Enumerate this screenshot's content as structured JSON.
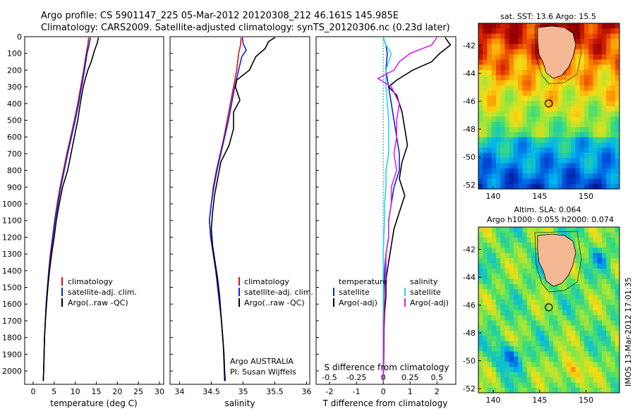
{
  "header": {
    "line1": "Argo profile: CS 5901147_225 05-Mar-2012 20120308_212 46.161S 145.985E",
    "line2": "Climatology: CARS2009. Satellite-adjusted climatology: synTS_20120306.nc (0.23d later)"
  },
  "side_stamp": "IMOS 13-Mar-2012 17:01:35",
  "colors": {
    "climatology": "#e01010",
    "satellite": "#1020e0",
    "argo": "#000000",
    "satellite_s": "#20d8e8",
    "argo_s": "#e020e0"
  },
  "chart_data": [
    {
      "type": "line",
      "xlabel": "temperature (deg C)",
      "xlim": [
        -2,
        31
      ],
      "xticks": [
        0,
        5,
        10,
        15,
        20,
        25,
        30
      ],
      "ylim": [
        2080,
        0
      ],
      "yticks": [
        0,
        100,
        200,
        300,
        400,
        500,
        600,
        700,
        800,
        900,
        1000,
        1100,
        1200,
        1300,
        1400,
        1500,
        1600,
        1700,
        1800,
        1900,
        2000
      ],
      "legend": [
        "climatology",
        "satellite-adj. clim.",
        "Argo(..raw -QC)"
      ],
      "series": [
        {
          "name": "climatology",
          "color": "#e01010",
          "points": [
            [
              13.2,
              5
            ],
            [
              13,
              50
            ],
            [
              12.6,
              100
            ],
            [
              12,
              200
            ],
            [
              11.3,
              300
            ],
            [
              10.6,
              400
            ],
            [
              9.8,
              500
            ],
            [
              8.9,
              600
            ],
            [
              8,
              700
            ],
            [
              7.2,
              800
            ],
            [
              6.4,
              900
            ],
            [
              5.7,
              1000
            ],
            [
              5.1,
              1100
            ],
            [
              4.6,
              1200
            ],
            [
              4.1,
              1300
            ],
            [
              3.7,
              1400
            ],
            [
              3.4,
              1500
            ],
            [
              3.1,
              1600
            ],
            [
              2.9,
              1700
            ],
            [
              2.7,
              1800
            ],
            [
              2.6,
              1900
            ],
            [
              2.5,
              2000
            ],
            [
              2.4,
              2060
            ]
          ]
        },
        {
          "name": "satellite-adj. clim.",
          "color": "#1020e0",
          "points": [
            [
              13.6,
              5
            ],
            [
              13.3,
              50
            ],
            [
              12.8,
              100
            ],
            [
              12.2,
              200
            ],
            [
              11.5,
              300
            ],
            [
              10.8,
              400
            ],
            [
              10,
              500
            ],
            [
              9.1,
              600
            ],
            [
              8.2,
              700
            ],
            [
              7.4,
              800
            ],
            [
              6.6,
              900
            ],
            [
              5.9,
              1000
            ],
            [
              5.2,
              1100
            ],
            [
              4.7,
              1200
            ],
            [
              4.2,
              1300
            ],
            [
              3.8,
              1400
            ],
            [
              3.4,
              1500
            ],
            [
              3.1,
              1600
            ],
            [
              2.9,
              1700
            ],
            [
              2.7,
              1800
            ],
            [
              2.6,
              1900
            ],
            [
              2.5,
              2000
            ],
            [
              2.4,
              2060
            ]
          ]
        },
        {
          "name": "Argo(..raw -QC)",
          "color": "#000000",
          "points": [
            [
              15.5,
              5
            ],
            [
              15.2,
              40
            ],
            [
              14.6,
              80
            ],
            [
              13.8,
              150
            ],
            [
              13,
              200
            ],
            [
              12.3,
              260
            ],
            [
              11.9,
              300
            ],
            [
              11.2,
              400
            ],
            [
              10.6,
              500
            ],
            [
              9.8,
              600
            ],
            [
              9,
              700
            ],
            [
              8.2,
              800
            ],
            [
              7,
              900
            ],
            [
              6.2,
              1000
            ],
            [
              5.5,
              1100
            ],
            [
              5,
              1200
            ],
            [
              4.4,
              1300
            ],
            [
              3.9,
              1400
            ],
            [
              3.5,
              1500
            ],
            [
              3.2,
              1600
            ],
            [
              2.9,
              1700
            ],
            [
              2.7,
              1800
            ],
            [
              2.6,
              1900
            ],
            [
              2.5,
              2000
            ],
            [
              2.4,
              2060
            ]
          ]
        }
      ]
    },
    {
      "type": "line",
      "xlabel": "salinity",
      "xlim": [
        33.85,
        36.05
      ],
      "xticks": [
        34,
        34.5,
        35,
        35.5,
        36
      ],
      "ylim": [
        2080,
        0
      ],
      "legend": [
        "climatology",
        "satellite-adj. clim.",
        "Argo(..raw -QC)"
      ],
      "annotation": [
        "Argo AUSTRALIA",
        "PI: Susan Wijffels"
      ],
      "series": [
        {
          "name": "climatology",
          "color": "#e01010",
          "points": [
            [
              34.97,
              5
            ],
            [
              34.96,
              50
            ],
            [
              34.93,
              100
            ],
            [
              34.9,
              200
            ],
            [
              34.85,
              300
            ],
            [
              34.8,
              400
            ],
            [
              34.75,
              500
            ],
            [
              34.7,
              600
            ],
            [
              34.64,
              700
            ],
            [
              34.58,
              800
            ],
            [
              34.53,
              900
            ],
            [
              34.5,
              1000
            ],
            [
              34.47,
              1100
            ],
            [
              34.49,
              1200
            ],
            [
              34.53,
              1300
            ],
            [
              34.57,
              1400
            ],
            [
              34.6,
              1500
            ],
            [
              34.63,
              1600
            ],
            [
              34.66,
              1700
            ],
            [
              34.68,
              1800
            ],
            [
              34.7,
              1900
            ],
            [
              34.71,
              2000
            ],
            [
              34.72,
              2060
            ]
          ]
        },
        {
          "name": "satellite-adj. clim.",
          "color": "#1020e0",
          "points": [
            [
              34.99,
              5
            ],
            [
              35.0,
              40
            ],
            [
              35.05,
              80
            ],
            [
              34.98,
              120
            ],
            [
              34.93,
              200
            ],
            [
              34.87,
              300
            ],
            [
              34.82,
              400
            ],
            [
              34.77,
              500
            ],
            [
              34.71,
              600
            ],
            [
              34.65,
              700
            ],
            [
              34.59,
              800
            ],
            [
              34.54,
              900
            ],
            [
              34.5,
              1000
            ],
            [
              34.47,
              1100
            ],
            [
              34.49,
              1200
            ],
            [
              34.53,
              1300
            ],
            [
              34.57,
              1400
            ],
            [
              34.6,
              1500
            ],
            [
              34.63,
              1600
            ],
            [
              34.66,
              1700
            ],
            [
              34.68,
              1800
            ],
            [
              34.7,
              1900
            ],
            [
              34.71,
              2000
            ],
            [
              34.72,
              2060
            ]
          ]
        },
        {
          "name": "Argo(..raw -QC)",
          "color": "#000000",
          "points": [
            [
              35.5,
              5
            ],
            [
              35.4,
              30
            ],
            [
              35.35,
              70
            ],
            [
              35.2,
              120
            ],
            [
              35.1,
              200
            ],
            [
              34.9,
              260
            ],
            [
              34.88,
              300
            ],
            [
              34.95,
              380
            ],
            [
              34.85,
              450
            ],
            [
              34.85,
              550
            ],
            [
              34.78,
              650
            ],
            [
              34.65,
              750
            ],
            [
              34.6,
              850
            ],
            [
              34.55,
              950
            ],
            [
              34.52,
              1050
            ],
            [
              34.5,
              1150
            ],
            [
              34.52,
              1250
            ],
            [
              34.56,
              1350
            ],
            [
              34.6,
              1450
            ],
            [
              34.63,
              1550
            ],
            [
              34.65,
              1650
            ],
            [
              34.67,
              1750
            ],
            [
              34.69,
              1850
            ],
            [
              34.7,
              1950
            ],
            [
              34.71,
              2060
            ]
          ]
        }
      ]
    },
    {
      "type": "line",
      "xlabel": "T difference from climatology",
      "xlabel_top": "S difference from climatology",
      "xlim": [
        -2.5,
        2.7
      ],
      "xticks": [
        -2,
        -1,
        0,
        1,
        2
      ],
      "xticks_top_labels": [
        "-0.5",
        "-0.25",
        "0",
        "0.25",
        "0.5"
      ],
      "ylim": [
        2080,
        0
      ],
      "legend_left": {
        "title": "temperature",
        "items": [
          "satellite",
          "Argo(-adj)"
        ]
      },
      "legend_right": {
        "title": "salinity",
        "items": [
          "satellite",
          "Argo(-adj)"
        ]
      },
      "series": [
        {
          "name": "satellite",
          "quantity": "temperature",
          "color": "#1020e0",
          "points": [
            [
              0,
              5
            ],
            [
              0.1,
              50
            ],
            [
              0.15,
              100
            ],
            [
              0.1,
              200
            ],
            [
              0.2,
              300
            ],
            [
              0.3,
              400
            ],
            [
              0.4,
              500
            ],
            [
              0.5,
              600
            ],
            [
              0.6,
              700
            ],
            [
              0.6,
              800
            ],
            [
              0.4,
              900
            ],
            [
              0.3,
              1000
            ],
            [
              0.2,
              1100
            ],
            [
              0.2,
              1200
            ],
            [
              0.1,
              1300
            ],
            [
              0.05,
              1400
            ],
            [
              0.02,
              1500
            ],
            [
              0.01,
              1600
            ],
            [
              0,
              1700
            ],
            [
              0,
              1800
            ],
            [
              0,
              1900
            ],
            [
              0,
              2060
            ]
          ]
        },
        {
          "name": "Argo(-adj)",
          "quantity": "temperature",
          "color": "#000000",
          "points": [
            [
              2.3,
              5
            ],
            [
              2.5,
              50
            ],
            [
              2.1,
              100
            ],
            [
              1.8,
              150
            ],
            [
              1.1,
              200
            ],
            [
              0.5,
              260
            ],
            [
              0.2,
              300
            ],
            [
              0.5,
              350
            ],
            [
              0.7,
              450
            ],
            [
              0.8,
              550
            ],
            [
              0.9,
              650
            ],
            [
              0.7,
              750
            ],
            [
              0.6,
              850
            ],
            [
              0.8,
              950
            ],
            [
              0.6,
              1050
            ],
            [
              0.4,
              1150
            ],
            [
              0.3,
              1250
            ],
            [
              0.2,
              1350
            ],
            [
              0.1,
              1450
            ],
            [
              0.1,
              1550
            ],
            [
              0.05,
              1650
            ],
            [
              0.03,
              1750
            ],
            [
              0.02,
              1900
            ],
            [
              0,
              2060
            ]
          ]
        },
        {
          "name": "satellite",
          "quantity": "salinity",
          "color": "#20d8e8",
          "points": [
            [
              0,
              5
            ],
            [
              0.1,
              50
            ],
            [
              0.3,
              100
            ],
            [
              0.2,
              150
            ],
            [
              0.1,
              200
            ],
            [
              0.1,
              300
            ],
            [
              0.15,
              400
            ],
            [
              0.2,
              500
            ],
            [
              0.2,
              600
            ],
            [
              0.2,
              700
            ],
            [
              0.1,
              800
            ],
            [
              0.1,
              900
            ],
            [
              0.05,
              1000
            ],
            [
              0.05,
              1100
            ],
            [
              0.02,
              1200
            ],
            [
              0,
              1300
            ],
            [
              0,
              1500
            ],
            [
              0,
              1700
            ],
            [
              0,
              2060
            ]
          ]
        },
        {
          "name": "Argo(-adj)",
          "quantity": "salinity",
          "color": "#e020e0",
          "points": [
            [
              2,
              5
            ],
            [
              1.8,
              50
            ],
            [
              1,
              100
            ],
            [
              0.6,
              150
            ],
            [
              0.4,
              200
            ],
            [
              -0.2,
              250
            ],
            [
              0.3,
              300
            ],
            [
              0.6,
              400
            ],
            [
              0.5,
              500
            ],
            [
              0.5,
              600
            ],
            [
              0.4,
              700
            ],
            [
              0.5,
              800
            ],
            [
              0.3,
              900
            ],
            [
              0.3,
              1000
            ],
            [
              0.2,
              1100
            ],
            [
              0.2,
              1200
            ],
            [
              0.1,
              1300
            ],
            [
              0.1,
              1400
            ],
            [
              0.05,
              1500
            ],
            [
              0.02,
              1700
            ],
            [
              0,
              2060
            ]
          ]
        }
      ]
    },
    {
      "type": "heatmap",
      "title": "sat. SST: 13.6 Argo: 15.5",
      "xticks": [
        140,
        145,
        150
      ],
      "yticks": [
        -42,
        -44,
        -46,
        -48,
        -50,
        -52
      ],
      "xlim": [
        138.4,
        153.6
      ],
      "ylim": [
        -52.3,
        -40.4
      ],
      "marker": {
        "lon": 145.985,
        "lat": -46.161
      }
    },
    {
      "type": "heatmap",
      "title_lines": [
        "Altim. SLA: 0.064",
        "Argo h1000: 0.055 h2000: 0.074"
      ],
      "xticks": [
        140,
        145,
        150
      ],
      "yticks": [
        -42,
        -44,
        -46,
        -48,
        -50,
        -52
      ],
      "xlim": [
        138.4,
        153.6
      ],
      "ylim": [
        -52.3,
        -40.4
      ],
      "marker": {
        "lon": 145.985,
        "lat": -46.161
      }
    }
  ]
}
